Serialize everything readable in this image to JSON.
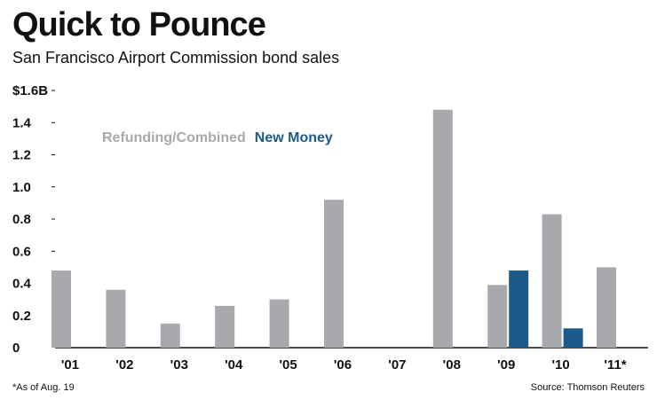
{
  "chart_data": {
    "type": "bar",
    "title": "Quick to Pounce",
    "subtitle": "San Francisco Airport Commission bond sales",
    "xlabel": "",
    "ylabel": "",
    "ylim": [
      0,
      1.6
    ],
    "y_ticks": [
      {
        "value": 0,
        "label": "0"
      },
      {
        "value": 0.2,
        "label": "0.2"
      },
      {
        "value": 0.4,
        "label": "0.4"
      },
      {
        "value": 0.6,
        "label": "0.6"
      },
      {
        "value": 0.8,
        "label": "0.8"
      },
      {
        "value": 1.0,
        "label": "1.0"
      },
      {
        "value": 1.2,
        "label": "1.2"
      },
      {
        "value": 1.4,
        "label": "1.4"
      },
      {
        "value": 1.6,
        "label": "$1.6B"
      }
    ],
    "categories": [
      "'01",
      "'02",
      "'03",
      "'04",
      "'05",
      "'06",
      "'07",
      "'08",
      "'09",
      "'10",
      "'11*"
    ],
    "series": [
      {
        "name": "Refunding/Combined",
        "color": "#a7a9ac",
        "values": [
          0.48,
          0.36,
          0.15,
          0.26,
          0.3,
          0.92,
          0,
          1.48,
          0.39,
          0.83,
          0.5
        ]
      },
      {
        "name": "New Money",
        "color": "#1c5a8c",
        "values": [
          0,
          0,
          0,
          0,
          0,
          0,
          0,
          0,
          0.48,
          0.12,
          0
        ]
      }
    ],
    "legend_position": "top-left",
    "footnote": "*As of Aug. 19",
    "source": "Source: Thomson Reuters"
  }
}
